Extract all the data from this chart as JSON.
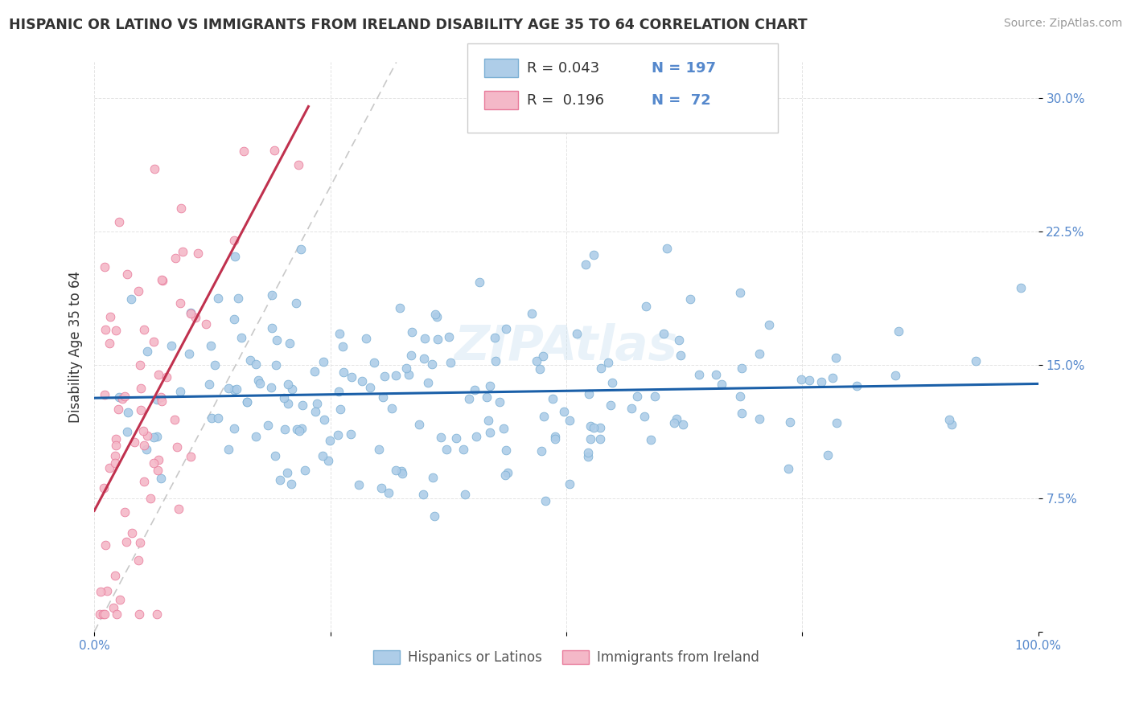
{
  "title": "HISPANIC OR LATINO VS IMMIGRANTS FROM IRELAND DISABILITY AGE 35 TO 64 CORRELATION CHART",
  "source": "Source: ZipAtlas.com",
  "ylabel": "Disability Age 35 to 64",
  "xlim": [
    0.0,
    1.0
  ],
  "ylim": [
    0.0,
    0.32
  ],
  "xticks": [
    0.0,
    0.25,
    0.5,
    0.75,
    1.0
  ],
  "xticklabels": [
    "0.0%",
    "",
    "",
    "",
    "100.0%"
  ],
  "yticks": [
    0.0,
    0.075,
    0.15,
    0.225,
    0.3
  ],
  "yticklabels": [
    "",
    "7.5%",
    "15.0%",
    "22.5%",
    "30.0%"
  ],
  "blue_scatter_color": "#aecde8",
  "blue_edge_color": "#7bafd4",
  "pink_scatter_color": "#f4b8c8",
  "pink_edge_color": "#e87a9a",
  "blue_line_color": "#1a5fa8",
  "pink_line_color": "#c0314e",
  "diagonal_color": "#bbbbbb",
  "grid_color": "#dddddd",
  "bg_color": "#ffffff",
  "tick_color": "#5588cc",
  "text_color": "#333333",
  "source_color": "#999999",
  "watermark": "ZIPAtlas",
  "seed": 42,
  "n_blue": 197,
  "n_pink": 72
}
